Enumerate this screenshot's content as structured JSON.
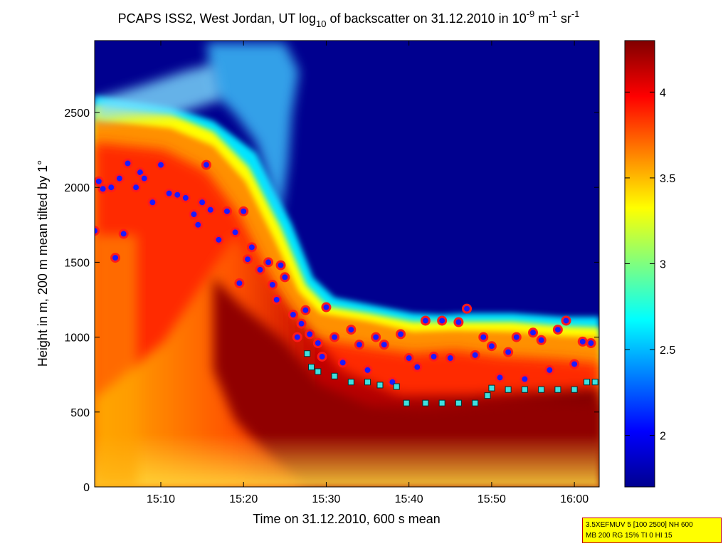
{
  "chart_data": {
    "type": "heatmap",
    "title": {
      "prefix": "PCAPS ISS2, West Jordan, UT log",
      "prefix_sub": "10",
      "mid": " of backscatter on 31.12.2010 in 10",
      "exp1": "-9",
      "unit1": " m",
      "exp2": "-1",
      "unit2": " sr",
      "exp3": "-1"
    },
    "xlabel": "Time on 31.12.2010, 600 s mean",
    "ylabel": "Height in m, 200 m mean tilted by 1°",
    "xlim_minutes": [
      902,
      963
    ],
    "x_ticks": [
      {
        "minutes": 910,
        "label": "15:10"
      },
      {
        "minutes": 920,
        "label": "15:20"
      },
      {
        "minutes": 930,
        "label": "15:30"
      },
      {
        "minutes": 940,
        "label": "15:40"
      },
      {
        "minutes": 950,
        "label": "15:50"
      },
      {
        "minutes": 960,
        "label": "16:00"
      }
    ],
    "ylim": [
      0,
      2980
    ],
    "y_ticks": [
      0,
      500,
      1000,
      1500,
      2000,
      2500
    ],
    "colorbar": {
      "colormap": "jet",
      "range": [
        1.7,
        4.3
      ],
      "ticks": [
        2,
        2.5,
        3,
        3.5,
        4
      ]
    },
    "series": [
      {
        "marker": "red circle, blue center",
        "points": [
          [
            902,
            1710
          ],
          [
            902.5,
            2040
          ],
          [
            903,
            1990
          ],
          [
            904,
            2000
          ],
          [
            904.5,
            1530
          ],
          [
            905,
            2060
          ],
          [
            905.5,
            1690
          ],
          [
            906,
            2160
          ],
          [
            907,
            2000
          ],
          [
            907.5,
            2100
          ],
          [
            908,
            2060
          ],
          [
            909,
            1900
          ],
          [
            910,
            2150
          ],
          [
            911,
            1960
          ],
          [
            912,
            1950
          ],
          [
            913,
            1930
          ],
          [
            914,
            1820
          ],
          [
            914.5,
            1750
          ],
          [
            915,
            1900
          ],
          [
            915.5,
            2150
          ],
          [
            916,
            1850
          ],
          [
            917,
            1650
          ],
          [
            918,
            1840
          ],
          [
            919,
            1700
          ],
          [
            919.5,
            1360
          ],
          [
            920,
            1840
          ],
          [
            920.5,
            1520
          ],
          [
            921,
            1600
          ],
          [
            922,
            1450
          ],
          [
            923,
            1500
          ],
          [
            923.5,
            1350
          ],
          [
            924,
            1250
          ],
          [
            924.5,
            1480
          ],
          [
            925,
            1400
          ],
          [
            926,
            1150
          ],
          [
            926.5,
            1000
          ],
          [
            927,
            1090
          ],
          [
            927.5,
            1180
          ],
          [
            928,
            1020
          ],
          [
            929,
            960
          ],
          [
            929.5,
            870
          ],
          [
            930,
            1200
          ],
          [
            931,
            1000
          ],
          [
            932,
            830
          ],
          [
            933,
            1050
          ],
          [
            934,
            950
          ],
          [
            935,
            780
          ],
          [
            936,
            1000
          ],
          [
            937,
            950
          ],
          [
            938,
            700
          ],
          [
            939,
            1020
          ],
          [
            940,
            860
          ],
          [
            941,
            800
          ],
          [
            942,
            1110
          ],
          [
            943,
            870
          ],
          [
            944,
            1110
          ],
          [
            945,
            860
          ],
          [
            946,
            1100
          ],
          [
            947,
            1190
          ],
          [
            948,
            880
          ],
          [
            949,
            1000
          ],
          [
            950,
            940
          ],
          [
            951,
            730
          ],
          [
            952,
            900
          ],
          [
            953,
            1000
          ],
          [
            954,
            720
          ],
          [
            955,
            1030
          ],
          [
            956,
            980
          ],
          [
            957,
            780
          ],
          [
            958,
            1050
          ],
          [
            959,
            1110
          ],
          [
            960,
            820
          ],
          [
            961,
            970
          ],
          [
            962,
            960
          ]
        ]
      },
      {
        "marker": "cyan square",
        "points": [
          [
            927.7,
            890
          ],
          [
            928.2,
            800
          ],
          [
            929,
            770
          ],
          [
            931,
            740
          ],
          [
            933,
            700
          ],
          [
            935,
            700
          ],
          [
            936.5,
            680
          ],
          [
            938.5,
            670
          ],
          [
            939.7,
            560
          ],
          [
            942,
            560
          ],
          [
            944,
            560
          ],
          [
            946,
            560
          ],
          [
            948,
            560
          ],
          [
            949.5,
            610
          ],
          [
            950,
            660
          ],
          [
            952,
            650
          ],
          [
            954,
            650
          ],
          [
            956,
            650
          ],
          [
            958,
            650
          ],
          [
            960,
            650
          ],
          [
            961.5,
            700
          ],
          [
            962.5,
            700
          ]
        ]
      }
    ]
  },
  "info_box": {
    "line1": "3.5XEFMUV 5 [100 2500] NH 600",
    "line2": "MB 200 RG 15% TI 0 HI 15"
  }
}
